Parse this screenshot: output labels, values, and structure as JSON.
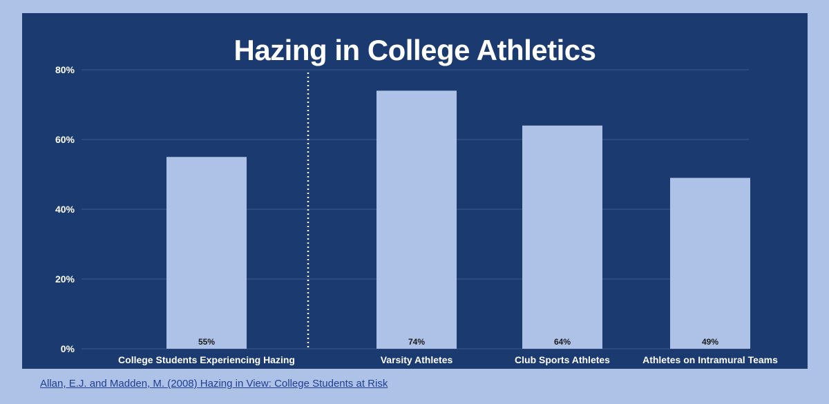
{
  "chart_data": {
    "type": "bar",
    "title": "Hazing in College Athletics",
    "categories": [
      "College Students Experiencing Hazing",
      "Varsity Athletes",
      "Club Sports Athletes",
      "Athletes on Intramural Teams"
    ],
    "values": [
      55,
      74,
      64,
      49
    ],
    "data_labels": [
      "55%",
      "74%",
      "64%",
      "49%"
    ],
    "ylim": [
      0,
      80
    ],
    "yticks": [
      0,
      20,
      40,
      60,
      80
    ],
    "ytick_labels": [
      "0%",
      "20%",
      "40%",
      "60%",
      "80%"
    ],
    "grid": true,
    "separator_after_category": 0,
    "colors": {
      "page_background": "#adc2e6",
      "plot_background": "#1b3a6f",
      "bar": "#adc2e6",
      "gridline": "#3c5a8c",
      "text": "#ffffff",
      "data_label": "#1a1a1a",
      "link": "#1f3f8f"
    }
  },
  "citation": "Allan, E.J. and Madden, M. (2008) Hazing in View: College Students at Risk"
}
